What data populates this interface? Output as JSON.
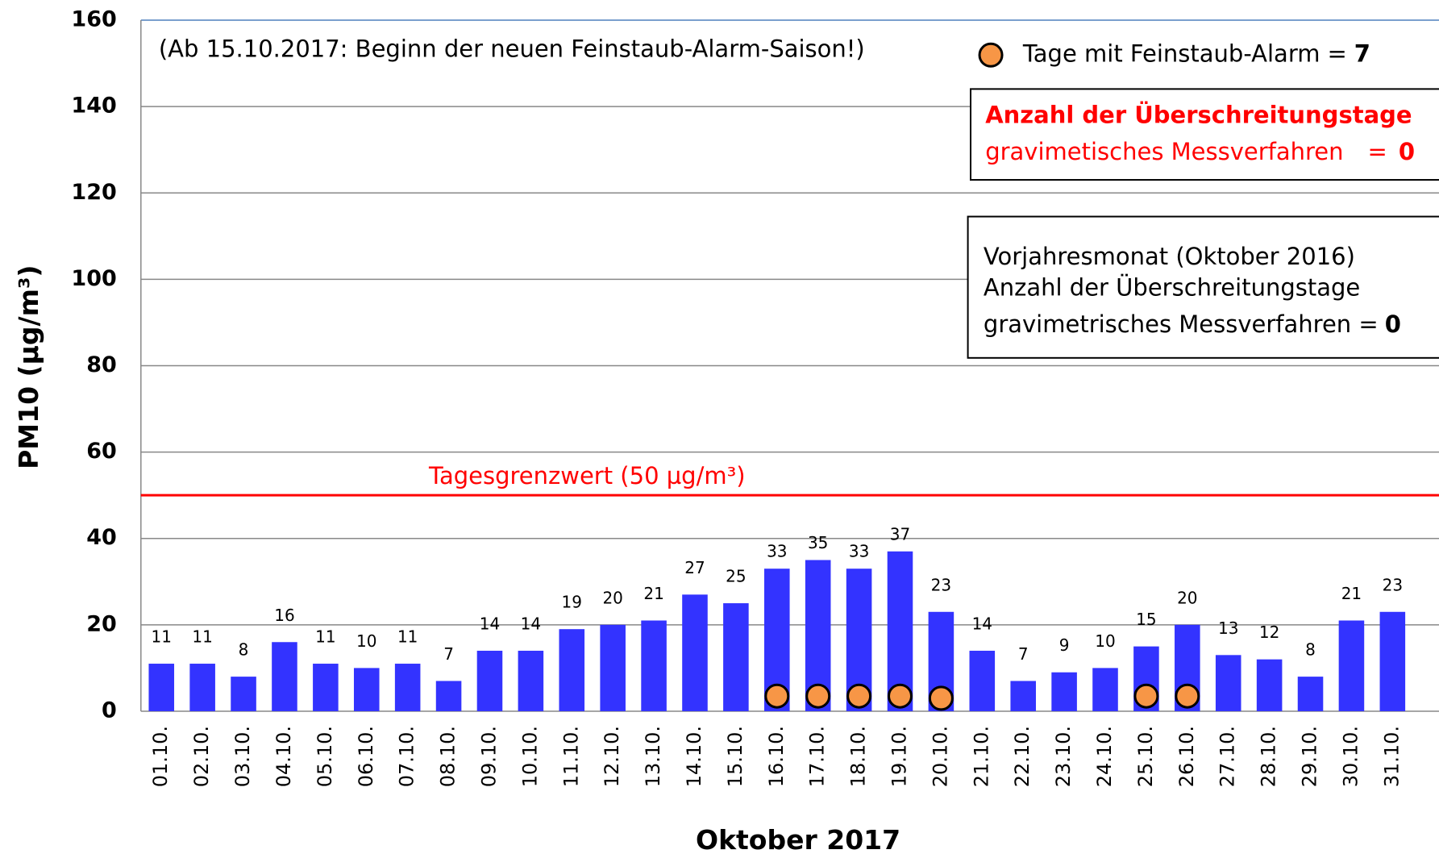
{
  "chart_data": {
    "type": "bar",
    "annotation": "(Ab 15.10.2017: Beginn der neuen Feinstaub-Alarm-Saison!)",
    "y_axis_label": "PM10 (µg/m³)",
    "x_axis_label": "Oktober 2017",
    "categories": [
      "01.10.",
      "02.10.",
      "03.10.",
      "04.10.",
      "05.10.",
      "06.10.",
      "07.10.",
      "08.10.",
      "09.10.",
      "10.10.",
      "11.10.",
      "12.10.",
      "13.10.",
      "14.10.",
      "15.10.",
      "16.10.",
      "17.10.",
      "18.10.",
      "19.10.",
      "20.10.",
      "21.10.",
      "22.10.",
      "23.10.",
      "24.10.",
      "25.10.",
      "26.10.",
      "27.10.",
      "28.10.",
      "29.10.",
      "30.10.",
      "31.10."
    ],
    "values": [
      11,
      11,
      8,
      16,
      11,
      10,
      11,
      7,
      14,
      14,
      19,
      20,
      21,
      27,
      25,
      33,
      35,
      33,
      37,
      23,
      14,
      7,
      9,
      10,
      15,
      20,
      13,
      12,
      8,
      21,
      23
    ],
    "color": "#3333ff",
    "alarm_series": {
      "name": "Tage mit Feinstaub-Alarm",
      "color": "#f79646",
      "values": [
        null,
        null,
        null,
        null,
        null,
        null,
        null,
        null,
        null,
        null,
        null,
        null,
        null,
        null,
        null,
        3.5,
        3.5,
        3.5,
        3.5,
        3,
        null,
        null,
        null,
        null,
        3.5,
        3.5,
        null,
        null,
        null,
        null,
        null
      ],
      "equals": "=",
      "count": 7
    },
    "limit": {
      "value": 50,
      "label": "Tagesgrenzwert (50 µg/m³)",
      "color": "#ff0000"
    },
    "box_current": {
      "line1": "Anzahl der Überschreitungstage",
      "line2": "gravimetisches Messverfahren",
      "equals": "=",
      "count": 0
    },
    "box_previous": {
      "line1": "Vorjahresmonat (Oktober 2016)",
      "line2": "Anzahl der Überschreitungstage",
      "line3": "gravimetrisches Messverfahren =",
      "count": 0
    },
    "ylim": [
      0,
      160
    ],
    "yticks": [
      0,
      20,
      40,
      60,
      80,
      100,
      120,
      140,
      160
    ],
    "grid": true
  }
}
